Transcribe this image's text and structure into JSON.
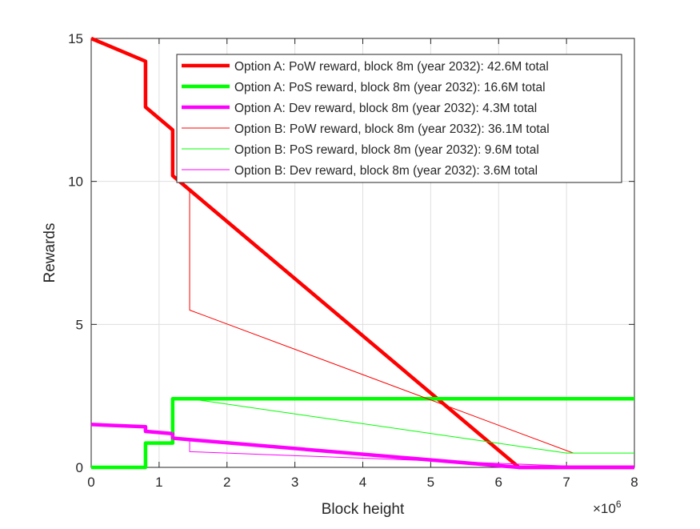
{
  "chart_data": {
    "type": "line",
    "title": "",
    "xlabel": "Block height",
    "ylabel": "Rewards",
    "x_exponent_label": "×10",
    "x_exponent_power": "6",
    "xlim": [
      0,
      8000000
    ],
    "ylim": [
      0,
      15
    ],
    "xticks": [
      0,
      1000000,
      2000000,
      3000000,
      4000000,
      5000000,
      6000000,
      7000000,
      8000000
    ],
    "xtick_labels": [
      "0",
      "1",
      "2",
      "3",
      "4",
      "5",
      "6",
      "7",
      "8"
    ],
    "yticks": [
      0,
      5,
      10,
      15
    ],
    "ytick_labels": [
      "0",
      "5",
      "10",
      "15"
    ],
    "grid": true,
    "legend_position": "top-right",
    "series": [
      {
        "name": "Option A: PoW reward, block 8m (year 2032): 42.6M total",
        "color": "#ff0000",
        "weight": "thick",
        "x": [
          0,
          800000,
          800000,
          1200000,
          1200000,
          6300000,
          8000000
        ],
        "y": [
          15,
          14.2,
          12.6,
          11.8,
          10.2,
          0,
          0
        ]
      },
      {
        "name": "Option A: PoS reward, block 8m (year 2032): 16.6M total",
        "color": "#00ff00",
        "weight": "thick",
        "x": [
          0,
          800000,
          800000,
          1200000,
          1200000,
          8000000
        ],
        "y": [
          0,
          0,
          0.85,
          0.85,
          2.4,
          2.4
        ]
      },
      {
        "name": "Option A: Dev reward, block 8m (year 2032): 4.3M total",
        "color": "#ff00ff",
        "weight": "thick",
        "x": [
          0,
          800000,
          800000,
          1200000,
          1200000,
          6300000,
          8000000
        ],
        "y": [
          1.5,
          1.42,
          1.26,
          1.18,
          1.02,
          0,
          0
        ]
      },
      {
        "name": "Option B: PoW reward, block 8m (year 2032): 36.1M total",
        "color": "#ff0000",
        "weight": "thin",
        "x": [
          0,
          800000,
          800000,
          1200000,
          1200000,
          1450000,
          1450000,
          7100000
        ],
        "y": [
          15,
          14.2,
          12.6,
          11.8,
          10.2,
          9.7,
          5.5,
          0.5
        ]
      },
      {
        "name": "Option B: PoS reward, block 8m (year 2032): 9.6M total",
        "color": "#00ff00",
        "weight": "thin",
        "x": [
          0,
          800000,
          800000,
          1200000,
          1200000,
          1450000,
          7000000,
          8000000
        ],
        "y": [
          0,
          0,
          0.85,
          0.85,
          2.4,
          2.4,
          0.5,
          0.5
        ]
      },
      {
        "name": "Option B: Dev reward, block 8m (year 2032): 3.6M total",
        "color": "#ff00ff",
        "weight": "thin",
        "x": [
          0,
          800000,
          800000,
          1200000,
          1200000,
          1450000,
          1450000,
          7000000,
          8000000
        ],
        "y": [
          1.5,
          1.42,
          1.26,
          1.18,
          1.02,
          0.97,
          0.55,
          0.05,
          0.05
        ]
      }
    ]
  }
}
